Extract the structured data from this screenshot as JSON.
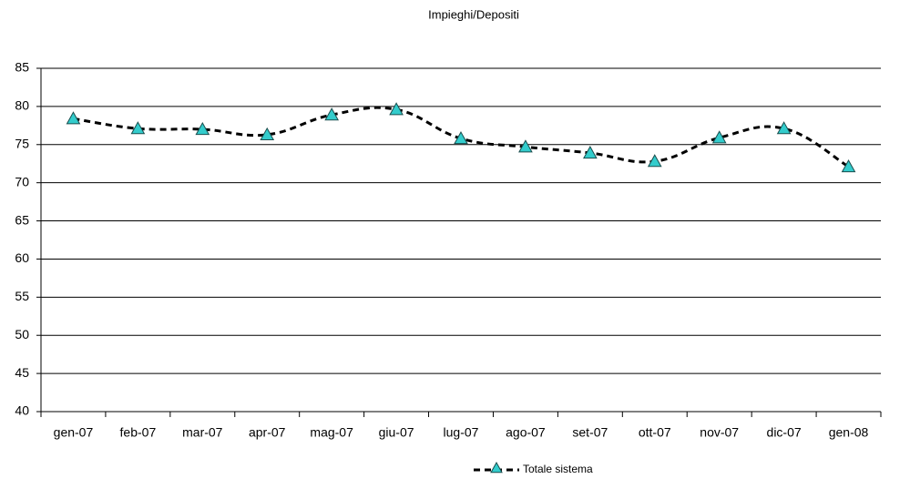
{
  "chart_data": {
    "type": "line",
    "title": "Impieghi/Depositi",
    "categories": [
      "gen-07",
      "feb-07",
      "mar-07",
      "apr-07",
      "mag-07",
      "giu-07",
      "lug-07",
      "ago-07",
      "set-07",
      "ott-07",
      "nov-07",
      "dic-07",
      "gen-08"
    ],
    "series": [
      {
        "name": "Totale sistema",
        "color": "#33cccc",
        "values": [
          78.4,
          77.1,
          77.0,
          76.3,
          78.9,
          79.6,
          75.8,
          74.7,
          73.9,
          72.8,
          75.9,
          77.1,
          72.1
        ]
      }
    ],
    "ylim": [
      40,
      85
    ],
    "yticks": [
      40,
      45,
      50,
      55,
      60,
      65,
      70,
      75,
      80,
      85
    ],
    "grid": true,
    "legend": "bottom"
  }
}
